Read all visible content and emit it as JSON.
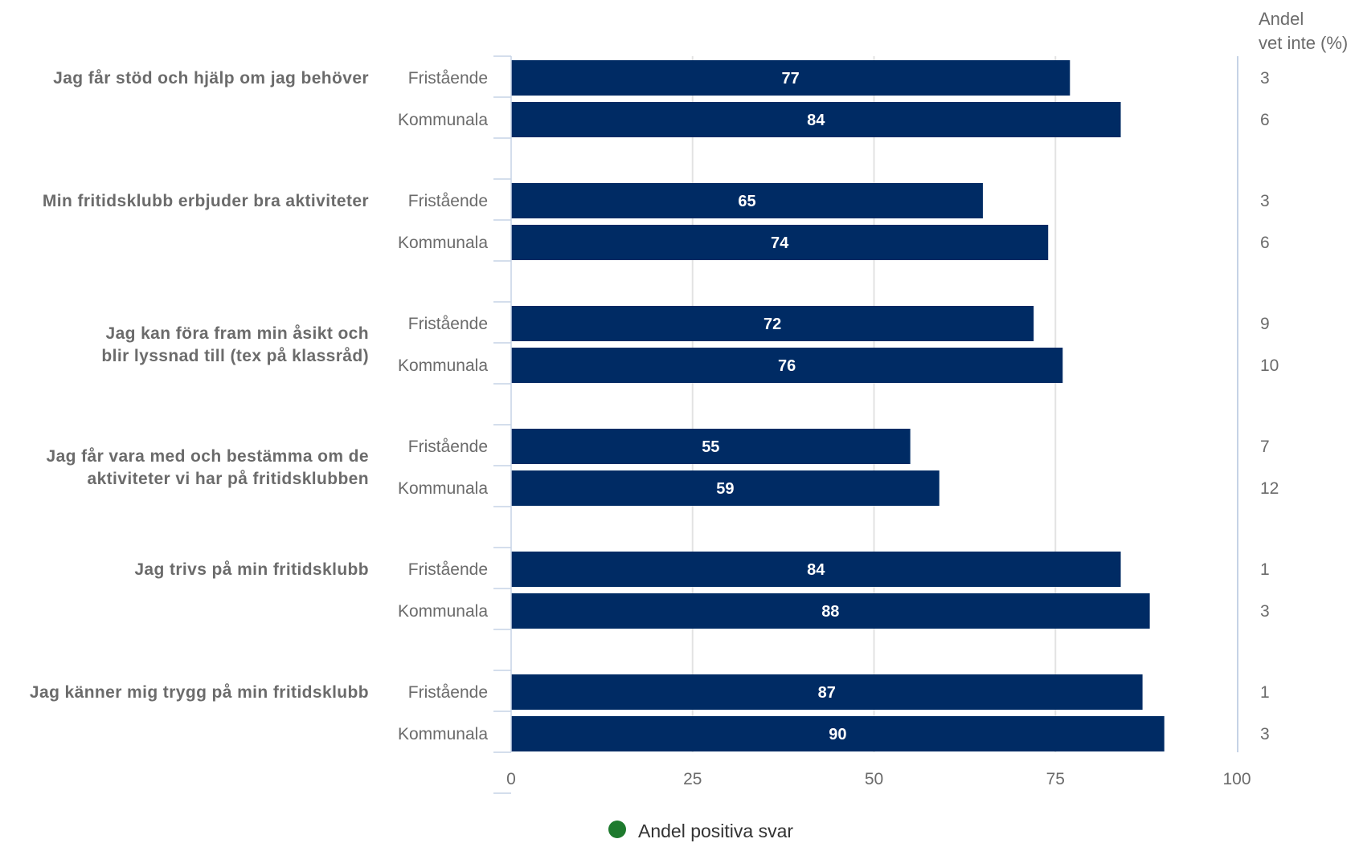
{
  "chart_data": {
    "type": "bar",
    "orientation": "horizontal",
    "groups": [
      "Fristående",
      "Kommunala"
    ],
    "questions": [
      {
        "label": [
          "Jag får stöd och hjälp om jag behöver"
        ],
        "values": [
          77,
          84
        ],
        "vet_inte": [
          3,
          6
        ]
      },
      {
        "label": [
          "Min fritidsklubb erbjuder bra aktiviteter"
        ],
        "values": [
          65,
          74
        ],
        "vet_inte": [
          3,
          6
        ]
      },
      {
        "label": [
          "Jag kan föra fram min åsikt och",
          "blir lyssnad till (tex på klassråd)"
        ],
        "values": [
          72,
          76
        ],
        "vet_inte": [
          9,
          10
        ]
      },
      {
        "label": [
          "Jag får vara med och bestämma om de",
          "aktiviteter vi har på fritidsklubben"
        ],
        "values": [
          55,
          59
        ],
        "vet_inte": [
          7,
          12
        ]
      },
      {
        "label": [
          "Jag trivs på min fritidsklubb"
        ],
        "values": [
          84,
          88
        ],
        "vet_inte": [
          1,
          3
        ]
      },
      {
        "label": [
          "Jag känner mig trygg på min fritidsklubb"
        ],
        "values": [
          87,
          90
        ],
        "vet_inte": [
          1,
          3
        ]
      }
    ],
    "xlim": [
      0,
      100
    ],
    "xticks": [
      0,
      25,
      50,
      75,
      100
    ],
    "vet_inte_header": [
      "Andel",
      "vet inte (%)"
    ],
    "legend": {
      "label": "Andel positiva svar",
      "marker_color": "#1e7a2e",
      "position": "bottom-center"
    },
    "grid": true,
    "colors": {
      "bar": "#002b64",
      "bar_text": "#ffffff",
      "grid": "#e3e3e3",
      "axis": "#c6d3e6",
      "text": "#6b6b6b"
    }
  }
}
